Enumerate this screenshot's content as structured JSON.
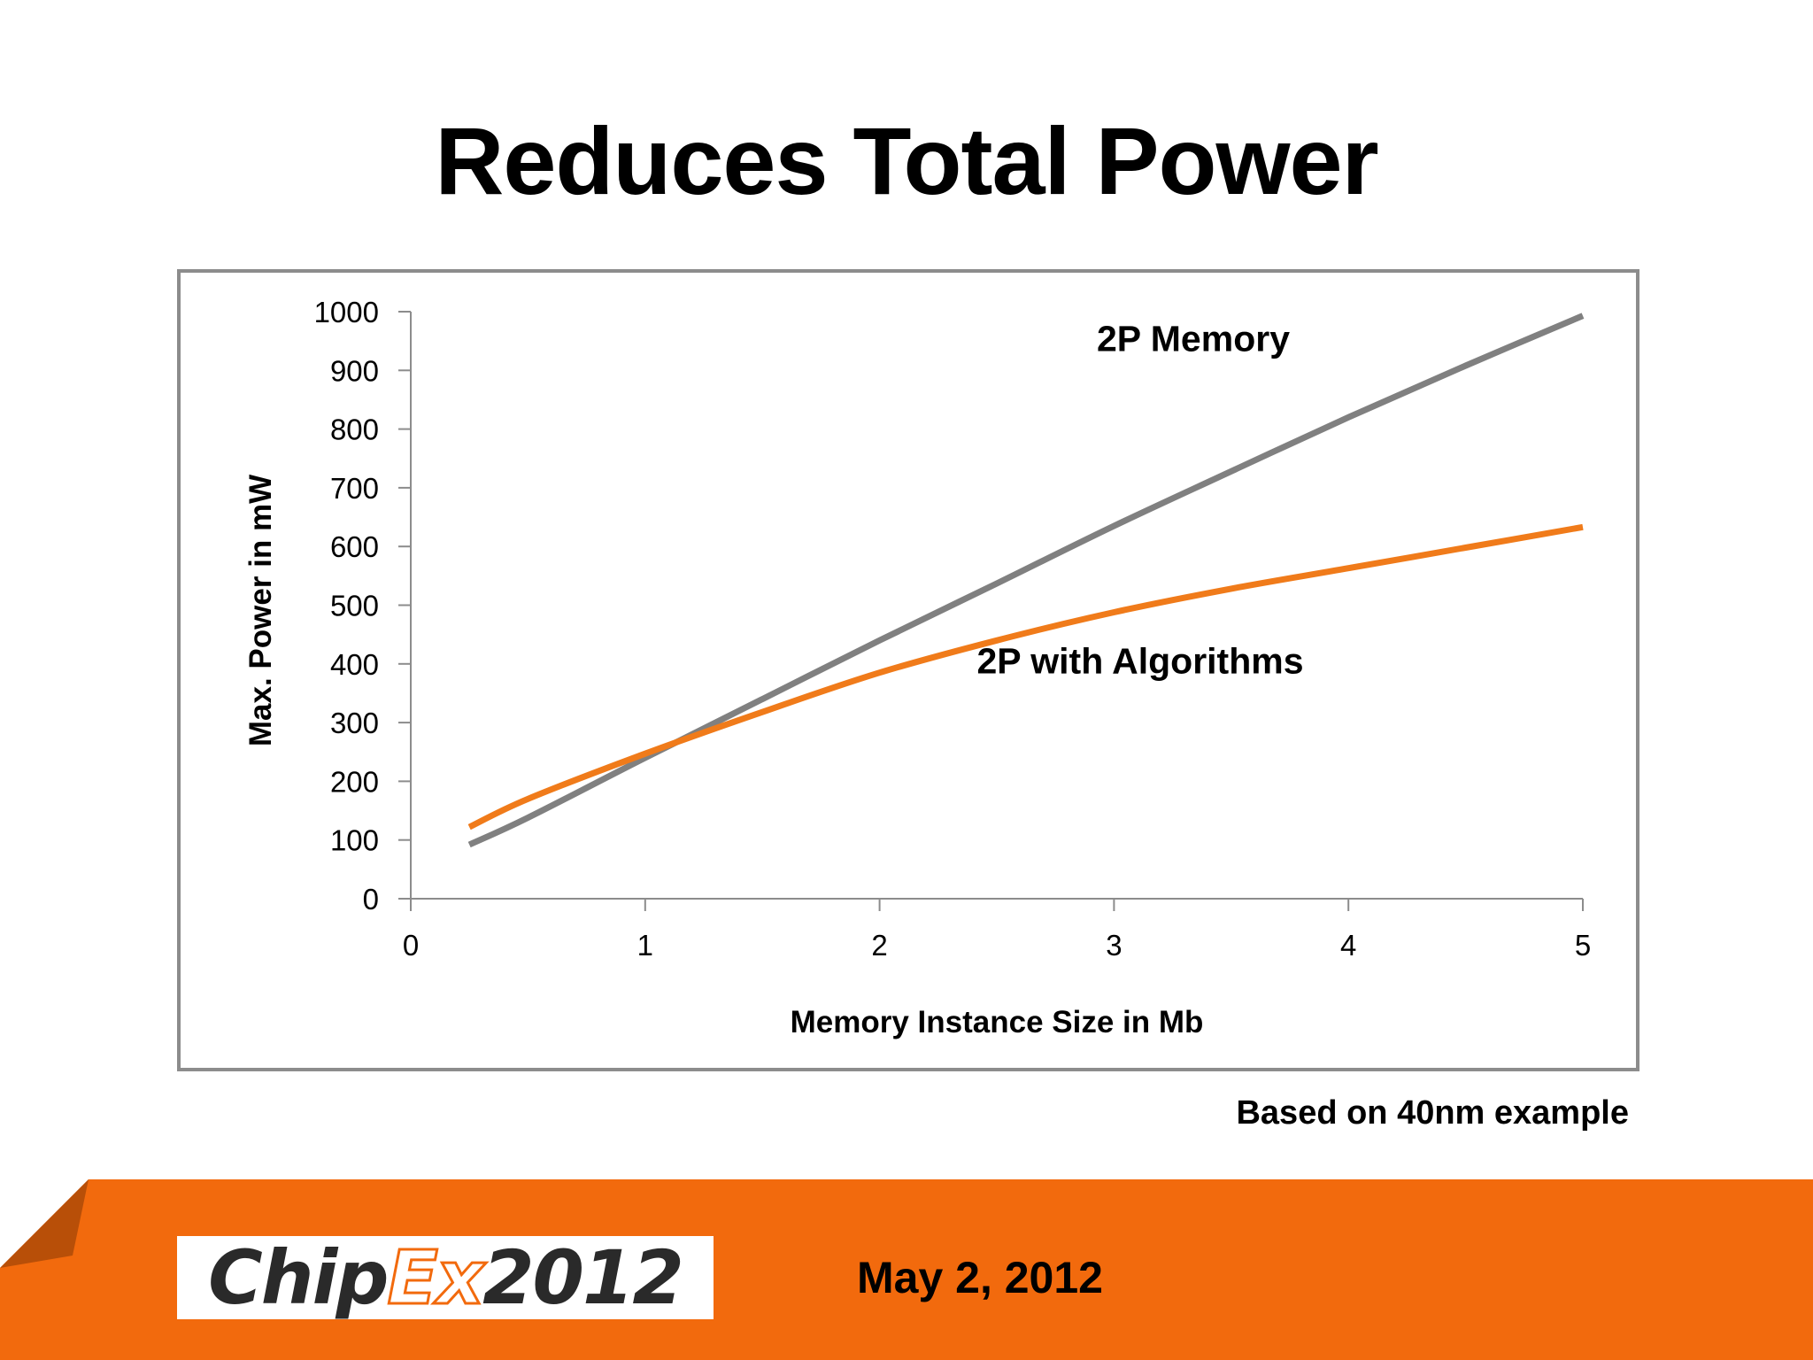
{
  "slide": {
    "title": "Reduces Total Power",
    "footnote": "Based on 40nm example",
    "footer": {
      "logo": {
        "text": "ChipEx2012",
        "parts": [
          "Chip",
          "Ex",
          "2012"
        ]
      },
      "date": "May 2, 2012"
    }
  },
  "colors": {
    "accent": "#f26a0d",
    "series_2p_memory": "#808080",
    "series_2p_algorithms": "#f07b1a",
    "frame": "#8c8c8c"
  },
  "chart_data": {
    "type": "line",
    "title": "",
    "xlabel": "Memory Instance Size in Mb",
    "ylabel": "Max. Power in mW",
    "xlim": [
      0,
      5
    ],
    "ylim": [
      0,
      1000
    ],
    "xticks": [
      0,
      1,
      2,
      3,
      4,
      5
    ],
    "yticks": [
      0,
      100,
      200,
      300,
      400,
      500,
      600,
      700,
      800,
      900,
      1000
    ],
    "grid": false,
    "legend": "none (series labeled directly on chart)",
    "series": [
      {
        "name": "2P Memory",
        "color": "#808080",
        "x": [
          0.25,
          0.5,
          1,
          1.5,
          2,
          2.5,
          3,
          3.5,
          4,
          4.5,
          5
        ],
        "y": [
          92,
          138,
          240,
          340,
          440,
          537,
          635,
          728,
          820,
          908,
          993
        ]
      },
      {
        "name": "2P with Algorithms",
        "color": "#f07b1a",
        "x": [
          0.25,
          0.5,
          1,
          1.5,
          2,
          2.5,
          3,
          3.5,
          4,
          4.5,
          5
        ],
        "y": [
          122,
          170,
          247,
          318,
          385,
          440,
          488,
          528,
          563,
          598,
          633
        ]
      }
    ]
  }
}
